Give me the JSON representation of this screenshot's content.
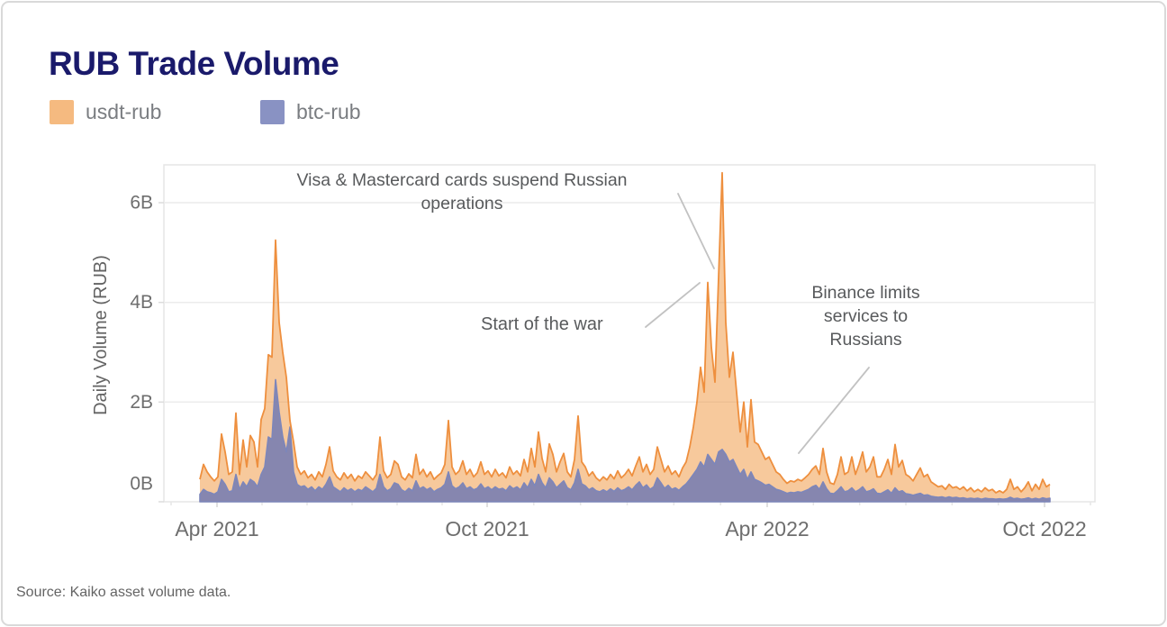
{
  "title": "RUB Trade Volume",
  "legend": {
    "items": [
      {
        "label": "usdt-rub",
        "color": "#f5ba80"
      },
      {
        "label": "btc-rub",
        "color": "#8992c3"
      }
    ]
  },
  "annotations": {
    "visa_line1": "Visa & Mastercard cards suspend Russian",
    "visa_line2": "operations",
    "war": "Start of the war",
    "binance_line1": "Binance limits",
    "binance_line2": "services to",
    "binance_line3": "Russians"
  },
  "source": "Source: Kaiko asset volume data.",
  "colors": {
    "title": "#1a1a6b",
    "usdt_stroke": "#ee8f3e",
    "usdt_fill": "rgba(239,148,57,0.5)",
    "btc_stroke": "#7d86ba",
    "btc_fill": "rgba(108,119,179,0.82)",
    "grid": "#ececec",
    "frame": "#e5e5e5",
    "leader": "#c2c2c2",
    "axis_text": "#6e6e6e"
  },
  "chart_data": {
    "type": "area",
    "title": "RUB Trade Volume",
    "xlabel": "",
    "ylabel": "Daily Volume (RUB)",
    "unit": "billions of RUB, daily",
    "x_start": "2021-03-20",
    "x_end": "2022-10-05",
    "x_tick_labels": [
      "Apr 2021",
      "Oct 2021",
      "Apr 2022",
      "Oct 2022"
    ],
    "y_tick_labels": [
      "0B",
      "2B",
      "4B",
      "6B"
    ],
    "ylim": [
      0,
      6.75
    ],
    "grid": "horizontal",
    "legend_position": "top-left",
    "annotations": [
      {
        "text": "Visa & Mastercard cards suspend Russian operations",
        "points_to": "2022-03 peak ~6.6B"
      },
      {
        "text": "Start of the war",
        "points_to": "2022-02-24 spike"
      },
      {
        "text": "Binance limits services to Russians",
        "points_to": "2022-04-21 region ~0.7B"
      }
    ],
    "series": [
      {
        "name": "usdt-rub",
        "stroke": "#ee8f3e",
        "fill": "rgba(239,148,57,0.5)",
        "values": [
          0.45,
          0.75,
          0.6,
          0.5,
          0.42,
          0.5,
          1.36,
          1.0,
          0.55,
          0.6,
          1.78,
          0.55,
          1.24,
          0.7,
          1.33,
          1.2,
          0.7,
          1.65,
          1.87,
          2.95,
          2.9,
          5.25,
          3.6,
          3.0,
          2.5,
          1.63,
          1.2,
          0.7,
          0.55,
          0.62,
          0.48,
          0.55,
          0.44,
          0.6,
          0.5,
          0.75,
          1.1,
          0.62,
          0.5,
          0.44,
          0.58,
          0.47,
          0.55,
          0.42,
          0.52,
          0.47,
          0.6,
          0.52,
          0.44,
          0.55,
          1.3,
          0.62,
          0.48,
          0.55,
          0.82,
          0.75,
          0.5,
          0.44,
          0.56,
          0.48,
          0.95,
          0.55,
          0.65,
          0.5,
          0.6,
          0.45,
          0.52,
          0.58,
          0.75,
          1.63,
          0.7,
          0.55,
          0.62,
          0.82,
          0.55,
          0.65,
          0.5,
          0.58,
          0.8,
          0.55,
          0.62,
          0.5,
          0.65,
          0.52,
          0.58,
          0.48,
          0.7,
          0.55,
          0.62,
          0.52,
          0.85,
          0.6,
          1.07,
          0.7,
          1.4,
          0.87,
          0.6,
          1.16,
          0.95,
          0.6,
          0.8,
          0.97,
          0.6,
          0.5,
          0.85,
          1.72,
          0.8,
          0.7,
          0.52,
          0.6,
          0.48,
          0.42,
          0.5,
          0.44,
          0.55,
          0.46,
          0.62,
          0.48,
          0.55,
          0.65,
          0.52,
          0.72,
          0.9,
          0.6,
          0.75,
          0.55,
          0.65,
          1.1,
          0.85,
          0.6,
          0.72,
          0.55,
          0.62,
          0.5,
          0.68,
          0.8,
          1.1,
          1.5,
          2.0,
          2.7,
          2.2,
          4.4,
          3.1,
          2.4,
          4.5,
          6.6,
          3.6,
          2.5,
          3.0,
          2.2,
          1.4,
          2.0,
          1.1,
          2.05,
          1.2,
          1.15,
          1.0,
          0.85,
          0.9,
          0.75,
          0.6,
          0.55,
          0.45,
          0.37,
          0.42,
          0.4,
          0.45,
          0.42,
          0.48,
          0.55,
          0.65,
          0.72,
          0.55,
          1.07,
          0.6,
          0.38,
          0.35,
          0.55,
          0.9,
          0.55,
          0.6,
          0.9,
          0.55,
          0.75,
          1.0,
          0.6,
          0.7,
          0.9,
          0.5,
          0.5,
          0.65,
          0.85,
          0.55,
          1.15,
          0.7,
          0.83,
          0.55,
          0.5,
          0.42,
          0.55,
          0.68,
          0.5,
          0.55,
          0.4,
          0.35,
          0.3,
          0.32,
          0.25,
          0.35,
          0.28,
          0.3,
          0.25,
          0.3,
          0.22,
          0.28,
          0.2,
          0.25,
          0.2,
          0.28,
          0.22,
          0.25,
          0.18,
          0.22,
          0.18,
          0.25,
          0.45,
          0.25,
          0.3,
          0.2,
          0.28,
          0.4,
          0.22,
          0.35,
          0.25,
          0.45,
          0.3,
          0.35
        ]
      },
      {
        "name": "btc-rub",
        "stroke": "#7d86ba",
        "fill": "rgba(108,119,179,0.82)",
        "values": [
          0.15,
          0.25,
          0.2,
          0.18,
          0.15,
          0.2,
          0.45,
          0.35,
          0.2,
          0.22,
          0.55,
          0.25,
          0.4,
          0.3,
          0.45,
          0.4,
          0.3,
          0.55,
          0.7,
          1.3,
          1.25,
          2.45,
          1.8,
          1.3,
          1.0,
          1.5,
          0.6,
          0.35,
          0.3,
          0.32,
          0.25,
          0.3,
          0.22,
          0.3,
          0.25,
          0.35,
          0.5,
          0.3,
          0.25,
          0.2,
          0.28,
          0.22,
          0.26,
          0.2,
          0.25,
          0.22,
          0.3,
          0.25,
          0.2,
          0.27,
          0.55,
          0.3,
          0.22,
          0.26,
          0.38,
          0.35,
          0.24,
          0.2,
          0.27,
          0.22,
          0.42,
          0.26,
          0.3,
          0.24,
          0.28,
          0.2,
          0.25,
          0.28,
          0.35,
          0.6,
          0.32,
          0.26,
          0.3,
          0.38,
          0.26,
          0.3,
          0.24,
          0.27,
          0.36,
          0.26,
          0.3,
          0.24,
          0.3,
          0.25,
          0.27,
          0.22,
          0.32,
          0.26,
          0.3,
          0.24,
          0.38,
          0.28,
          0.45,
          0.32,
          0.55,
          0.38,
          0.28,
          0.48,
          0.4,
          0.28,
          0.35,
          0.42,
          0.28,
          0.24,
          0.38,
          0.65,
          0.36,
          0.32,
          0.24,
          0.28,
          0.22,
          0.2,
          0.24,
          0.2,
          0.26,
          0.21,
          0.28,
          0.22,
          0.25,
          0.3,
          0.24,
          0.33,
          0.4,
          0.28,
          0.34,
          0.25,
          0.3,
          0.48,
          0.38,
          0.27,
          0.33,
          0.25,
          0.28,
          0.23,
          0.3,
          0.36,
          0.45,
          0.55,
          0.65,
          0.8,
          0.7,
          0.95,
          0.85,
          0.75,
          1.0,
          1.05,
          0.95,
          0.8,
          0.85,
          0.7,
          0.55,
          0.65,
          0.45,
          0.6,
          0.45,
          0.42,
          0.38,
          0.33,
          0.35,
          0.3,
          0.25,
          0.23,
          0.2,
          0.17,
          0.19,
          0.18,
          0.2,
          0.19,
          0.22,
          0.25,
          0.3,
          0.33,
          0.25,
          0.4,
          0.26,
          0.17,
          0.16,
          0.22,
          0.3,
          0.2,
          0.22,
          0.28,
          0.2,
          0.24,
          0.3,
          0.2,
          0.22,
          0.26,
          0.17,
          0.16,
          0.2,
          0.24,
          0.17,
          0.28,
          0.2,
          0.22,
          0.16,
          0.15,
          0.13,
          0.15,
          0.17,
          0.13,
          0.14,
          0.11,
          0.1,
          0.09,
          0.1,
          0.08,
          0.1,
          0.08,
          0.09,
          0.07,
          0.08,
          0.06,
          0.07,
          0.06,
          0.07,
          0.05,
          0.07,
          0.06,
          0.06,
          0.05,
          0.06,
          0.05,
          0.06,
          0.09,
          0.06,
          0.07,
          0.05,
          0.06,
          0.08,
          0.05,
          0.07,
          0.05,
          0.08,
          0.06,
          0.07
        ]
      }
    ]
  }
}
